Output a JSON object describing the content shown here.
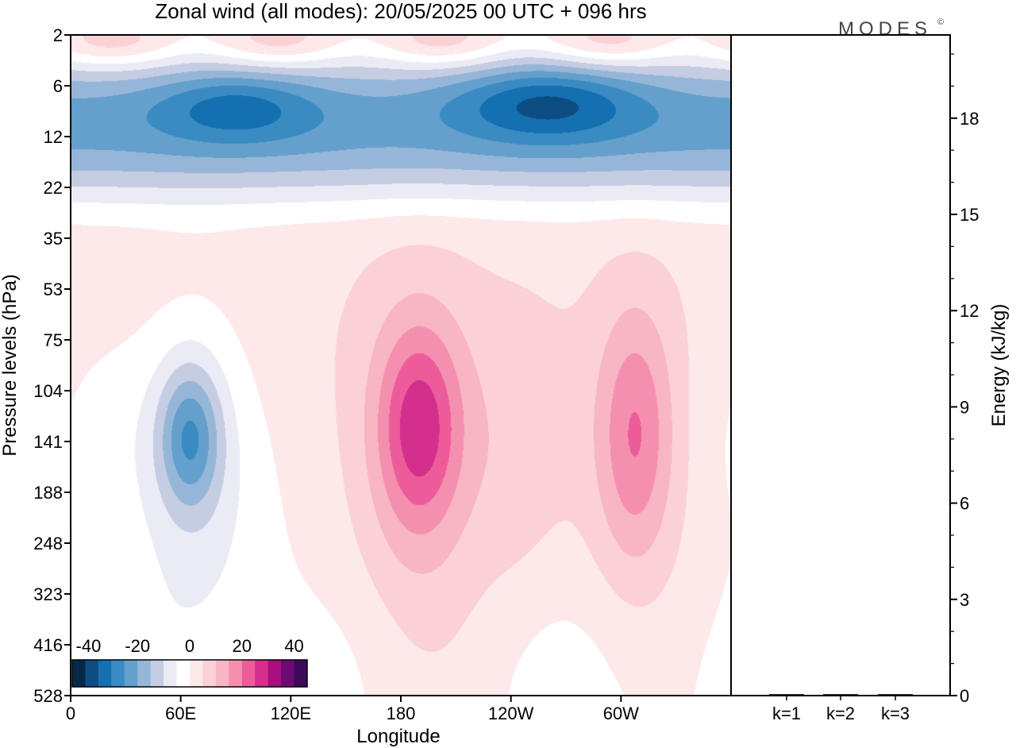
{
  "title": "Zonal wind (all modes):  20/05/2025  00 UTC  + 096 hrs",
  "logo": "MODES",
  "logo_mark": "©",
  "chart_data": [
    {
      "type": "heatmap",
      "title": "Zonal wind (all modes):  20/05/2025  00 UTC  + 096 hrs",
      "xlabel": "Longitude",
      "ylabel": "Pressure levels (hPa)",
      "x_ticks": [
        "0",
        "60E",
        "120E",
        "180",
        "120W",
        "60W"
      ],
      "x_tick_values": [
        0,
        60,
        120,
        180,
        240,
        300
      ],
      "xlim": [
        0,
        360
      ],
      "y_ticks": [
        "2",
        "6",
        "12",
        "22",
        "35",
        "53",
        "75",
        "104",
        "141",
        "188",
        "248",
        "323",
        "416",
        "528"
      ],
      "y_scale": "pressure-level index (top = 2 hPa)",
      "colorbar": {
        "ticks": [
          "-40",
          "-20",
          "0",
          "20",
          "40"
        ],
        "range": [
          -45,
          45
        ],
        "colors": [
          "#08284a",
          "#0d4d82",
          "#1470b0",
          "#3a8bc2",
          "#659fcc",
          "#96b6d8",
          "#c5cde3",
          "#ebebf5",
          "#ffffff",
          "#fde8ea",
          "#fbd1d6",
          "#f8b5c3",
          "#f58fb0",
          "#ec5c9a",
          "#d42f8c",
          "#a5107c",
          "#6d0a73",
          "#3d0a5a"
        ]
      },
      "features": [
        {
          "lon": 190,
          "level": 7.6,
          "value": 22
        },
        {
          "lon": 195,
          "level": 8.5,
          "value": 14
        },
        {
          "lon": 310,
          "level": 7.9,
          "value": 15
        },
        {
          "lon": 65,
          "level": 8.1,
          "value": -22
        },
        {
          "lon": 260,
          "level": 1.2,
          "value": -38
        },
        {
          "lon": 90,
          "level": 1.3,
          "value": -32
        }
      ]
    },
    {
      "type": "bar",
      "categories": [
        "k=1",
        "k=2",
        "k=3"
      ],
      "values": [
        0.02,
        0.02,
        0.02
      ],
      "ylabel": "Energy (kJ/kg)",
      "ylim": [
        0,
        20
      ],
      "y_ticks": [
        0,
        3,
        6,
        9,
        12,
        15,
        18
      ],
      "y_minor_step": 1
    }
  ]
}
